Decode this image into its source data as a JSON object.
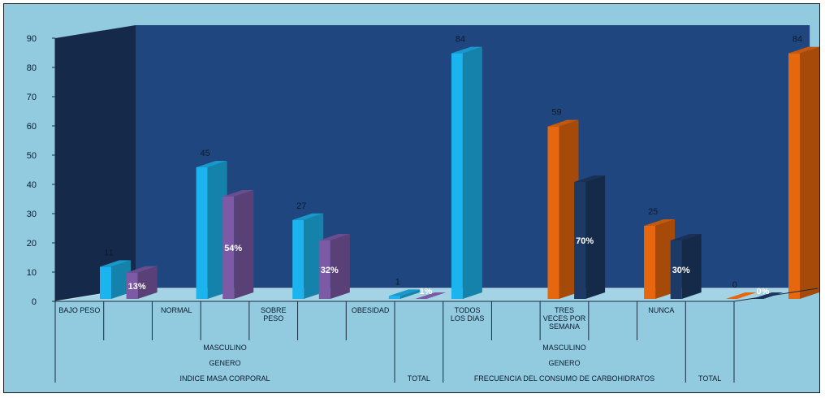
{
  "chart_data": {
    "type": "bar",
    "title": "",
    "xlabel": "",
    "ylabel": "",
    "ylim": [
      0,
      90
    ],
    "yticks": [
      0,
      10,
      20,
      30,
      40,
      50,
      60,
      70,
      80,
      90
    ],
    "grid": false,
    "legend": "none",
    "colors": {
      "background": "#92cbdf",
      "back_wall": "#1f467f",
      "side_wall": "#152a4a",
      "floor": "#a3d3e4",
      "cyan": "#1cb4ee",
      "purple": "#7c5aa6",
      "orange": "#e7670e",
      "navy": "#1d3a66"
    },
    "categories": [
      {
        "label": [
          "BAJO PESO"
        ]
      },
      {
        "label": [
          ""
        ]
      },
      {
        "label": [
          "NORMAL"
        ]
      },
      {
        "label": [
          ""
        ]
      },
      {
        "label": [
          "SOBRE",
          "PESO"
        ]
      },
      {
        "label": [
          ""
        ]
      },
      {
        "label": [
          "OBESIDAD"
        ]
      },
      {
        "label": [
          ""
        ]
      },
      {
        "label": [
          "TODOS",
          "LOS DIAS"
        ]
      },
      {
        "label": [
          ""
        ]
      },
      {
        "label": [
          "TRES",
          "VECES POR",
          "SEMANA"
        ]
      },
      {
        "label": [
          ""
        ]
      },
      {
        "label": [
          "NUNCA"
        ]
      },
      {
        "label": [
          ""
        ]
      }
    ],
    "group_levels": [
      [
        {
          "text": "MASCULINO",
          "from": 0,
          "to": 6
        },
        {
          "text": "MASCULINO",
          "from": 8,
          "to": 12
        }
      ],
      [
        {
          "text": "GENERO",
          "from": 0,
          "to": 6
        },
        {
          "text": "GENERO",
          "from": 8,
          "to": 12
        }
      ],
      [
        {
          "text": "INDICE MASA CORPORAL",
          "from": 0,
          "to": 6
        },
        {
          "text": "TOTAL",
          "from": 7,
          "to": 7
        },
        {
          "text": "FRECUENCIA DEL CONSUMO DE CARBOHIDRATOS",
          "from": 8,
          "to": 12
        },
        {
          "text": "TOTAL",
          "from": 13,
          "to": 13
        }
      ]
    ],
    "bars": [
      {
        "slot": 0,
        "value": 11,
        "label": "11",
        "color": "cyan"
      },
      {
        "slot": 0.55,
        "value": 9,
        "label": "13%",
        "color": "purple"
      },
      {
        "slot": 2,
        "value": 45,
        "label": "45",
        "color": "cyan"
      },
      {
        "slot": 2.55,
        "value": 35,
        "label": "54%",
        "color": "purple"
      },
      {
        "slot": 4,
        "value": 27,
        "label": "27",
        "color": "cyan"
      },
      {
        "slot": 4.55,
        "value": 20,
        "label": "32%",
        "color": "purple"
      },
      {
        "slot": 6,
        "value": 1,
        "label": "1",
        "color": "cyan"
      },
      {
        "slot": 6.55,
        "value": 0.5,
        "label": "1%",
        "color": "purple"
      },
      {
        "slot": 7.3,
        "value": 84,
        "label": "84",
        "color": "cyan"
      },
      {
        "slot": 9.3,
        "value": 59,
        "label": "59",
        "color": "orange"
      },
      {
        "slot": 9.85,
        "value": 40,
        "label": "70%",
        "color": "navy"
      },
      {
        "slot": 11.3,
        "value": 25,
        "label": "25",
        "color": "orange"
      },
      {
        "slot": 11.85,
        "value": 20,
        "label": "30%",
        "color": "navy"
      },
      {
        "slot": 13,
        "value": 0,
        "label": "0",
        "color": "orange"
      },
      {
        "slot": 13.55,
        "value": 0,
        "label": "0%",
        "color": "navy"
      },
      {
        "slot": 14.3,
        "value": 84,
        "label": "84",
        "color": "orange"
      }
    ]
  }
}
